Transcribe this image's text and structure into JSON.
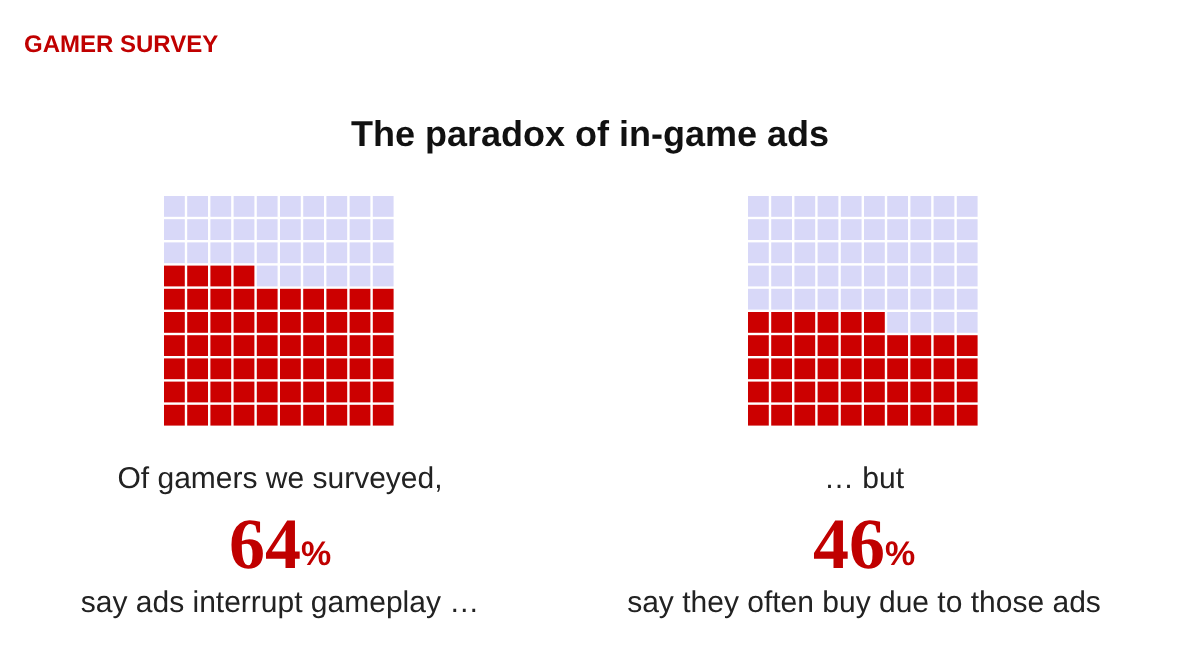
{
  "chart_data": {
    "type": "other",
    "subtitle": "GAMER SURVEY",
    "title": "The paradox of in-game ads",
    "annotations": [
      "Of gamers we surveyed,",
      "… but"
    ],
    "categories": [
      "say ads interrupt gameplay …",
      "say they often buy due to those ads"
    ],
    "values": [
      64,
      46
    ],
    "value_labels": [
      "64%",
      "46%"
    ],
    "color": "#cc0000"
  }
}
